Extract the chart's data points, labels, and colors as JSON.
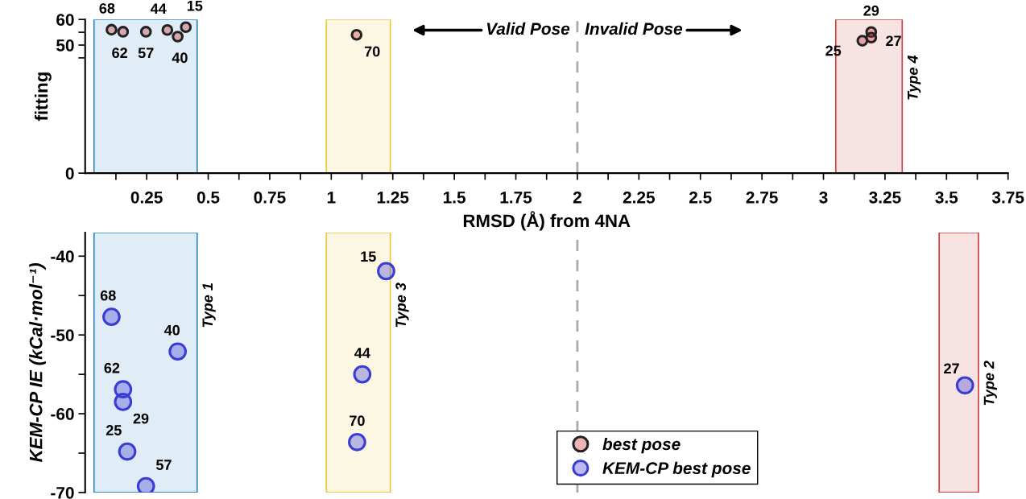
{
  "chart_data": [
    {
      "type": "scatter",
      "ylabel": "fitting",
      "xlabel": "RMSD (Å) from 4NA",
      "xlim": [
        0,
        3.75
      ],
      "ylim": [
        0,
        60
      ],
      "yticks": [
        0,
        {
          "value": 45,
          "label": null
        },
        50,
        {
          "value": 55,
          "label": null
        },
        60
      ],
      "xticks": [
        {
          "value": 0.125,
          "label": null
        },
        0.25,
        {
          "value": 0.375,
          "label": null
        },
        0.5,
        {
          "value": 0.625,
          "label": null
        },
        0.75,
        {
          "value": 0.875,
          "label": null
        },
        1,
        {
          "value": 1.125,
          "label": null
        },
        1.25,
        {
          "value": 1.375,
          "label": null
        },
        1.5,
        {
          "value": 1.625,
          "label": null
        },
        1.75,
        {
          "value": 1.875,
          "label": null
        },
        2,
        {
          "value": 2.125,
          "label": null
        },
        2.25,
        {
          "value": 2.375,
          "label": null
        },
        2.5,
        {
          "value": 2.625,
          "label": null
        },
        2.75,
        {
          "value": 2.875,
          "label": null
        },
        3,
        {
          "value": 3.125,
          "label": null
        },
        3.25,
        {
          "value": 3.375,
          "label": null
        },
        3.5,
        {
          "value": 3.625,
          "label": null
        },
        3.75
      ],
      "marker": "circle",
      "grid": false,
      "series": [
        {
          "name": "best pose",
          "color": "#c62828",
          "x": [
            0.107,
            0.154,
            0.247,
            0.334,
            0.376,
            0.409,
            1.103,
            3.194,
            3.194,
            3.158
          ],
          "values": [
            56.0,
            55.2,
            55.2,
            55.9,
            53.3,
            57.0,
            54.0,
            55.1,
            52.9,
            51.7
          ]
        }
      ],
      "ref_lines": [
        {
          "axis": "x",
          "value": 2,
          "color": "#aaaaaa",
          "line_style": "dashed"
        }
      ],
      "bands": [
        {
          "axis": "x",
          "from": 0.036,
          "to": 0.455,
          "color": "#2e86c1"
        },
        {
          "axis": "x",
          "from": 0.98,
          "to": 1.24,
          "color": "#e8c840"
        },
        {
          "axis": "x",
          "from": 3.05,
          "to": 3.32,
          "color": "#d04040",
          "label": "Type 4"
        }
      ],
      "annotations": [
        {
          "text": "68",
          "x": 0.107,
          "y": 56.0
        },
        {
          "text": "62",
          "x": 0.154,
          "y": 55.2
        },
        {
          "text": "57",
          "x": 0.247,
          "y": 55.2
        },
        {
          "text": "44",
          "x": 0.334,
          "y": 55.9
        },
        {
          "text": "40",
          "x": 0.376,
          "y": 53.3
        },
        {
          "text": "15",
          "x": 0.409,
          "y": 57.0
        },
        {
          "text": "70",
          "x": 1.103,
          "y": 54.0
        },
        {
          "text": "29",
          "x": 3.194,
          "y": 55.1
        },
        {
          "text": "27",
          "x": 3.194,
          "y": 52.9
        },
        {
          "text": "25",
          "x": 3.158,
          "y": 51.7
        },
        "Valid Pose",
        "Invalid Pose"
      ]
    },
    {
      "type": "scatter",
      "ylabel": "KEM-CP IE (kCal·mol⁻¹)",
      "xlim": [
        0,
        3.75
      ],
      "ylim": [
        -70,
        -37
      ],
      "yticks": [
        -40,
        {
          "value": -45,
          "label": null
        },
        -50,
        {
          "value": -55,
          "label": null
        },
        -60,
        {
          "value": -65,
          "label": null
        },
        -70
      ],
      "tick_labels": "y",
      "marker": "circle",
      "legend": "bottom",
      "grid": false,
      "series": [
        {
          "name": "KEM-CP best pose",
          "color": "#3b3bd6",
          "x": [
            0.107,
            0.376,
            0.154,
            0.154,
            0.171,
            0.247,
            1.223,
            1.126,
            1.105,
            3.575
          ],
          "values": [
            -47.7,
            -52.1,
            -56.9,
            -58.5,
            -64.8,
            -69.2,
            -41.9,
            -55.0,
            -63.6,
            -56.4
          ]
        }
      ],
      "ref_lines": [
        {
          "axis": "x",
          "value": 2,
          "color": "#aaaaaa",
          "line_style": "dashed"
        }
      ],
      "bands": [
        {
          "axis": "x",
          "from": 0.036,
          "to": 0.455,
          "color": "#2e86c1",
          "label": "Type 1"
        },
        {
          "axis": "x",
          "from": 0.98,
          "to": 1.24,
          "color": "#e8c840",
          "label": "Type 3"
        },
        {
          "axis": "x",
          "from": 3.47,
          "to": 3.63,
          "color": "#d04040",
          "label": "Type 2"
        }
      ],
      "annotations": [
        {
          "text": "68",
          "x": 0.107,
          "y": -47.7
        },
        {
          "text": "40",
          "x": 0.376,
          "y": -52.1
        },
        {
          "text": "62",
          "x": 0.154,
          "y": -56.9
        },
        {
          "text": "29",
          "x": 0.154,
          "y": -58.5
        },
        {
          "text": "25",
          "x": 0.171,
          "y": -64.8
        },
        {
          "text": "57",
          "x": 0.247,
          "y": -69.2
        },
        {
          "text": "15",
          "x": 1.223,
          "y": -41.9
        },
        {
          "text": "44",
          "x": 1.126,
          "y": -55.0
        },
        {
          "text": "70",
          "x": 1.105,
          "y": -63.6
        },
        {
          "text": "27",
          "x": 3.575,
          "y": -56.4
        }
      ]
    }
  ]
}
